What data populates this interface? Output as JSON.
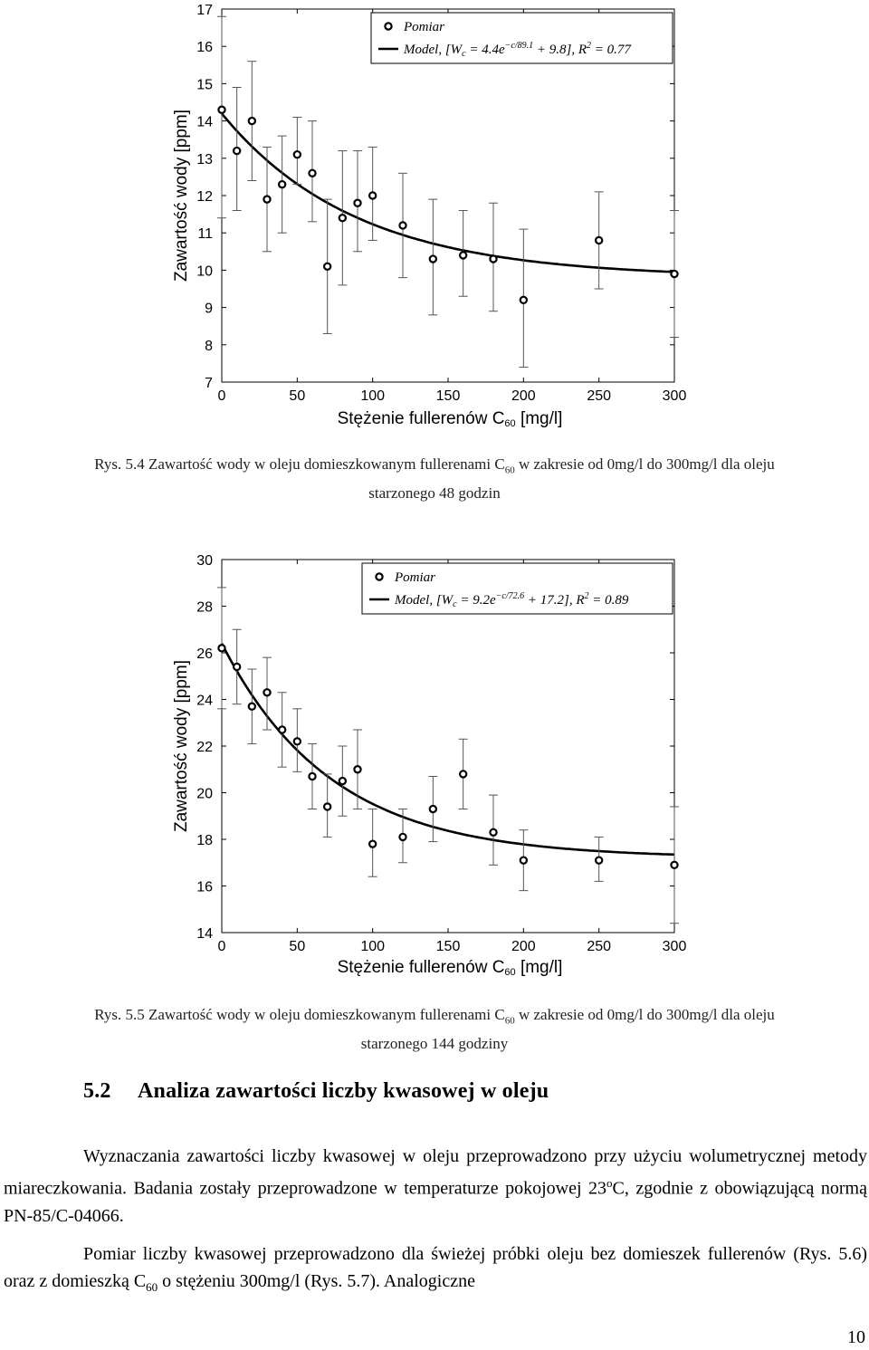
{
  "charts": [
    {
      "id": "rys-5-4",
      "chart_data": {
        "type": "scatter",
        "title": "",
        "xlabel": "Stężenie fullerenów C60 [mg/l]",
        "ylabel": "Zawartość wody [ppm]",
        "xlim": [
          0,
          300
        ],
        "ylim": [
          7,
          17
        ],
        "x_ticks": [
          0,
          50,
          100,
          150,
          200,
          250,
          300
        ],
        "y_ticks": [
          7,
          8,
          9,
          10,
          11,
          12,
          13,
          14,
          15,
          16,
          17
        ],
        "grid": false,
        "legend_position": "top-right",
        "legend": [
          "Pomiar",
          "Model, [W_c = 4.4e^{-c/89.1} + 9.8], R^2 = 0.77"
        ],
        "series": [
          {
            "name": "Pomiar",
            "x": [
              0,
              10,
              20,
              30,
              40,
              50,
              60,
              70,
              80,
              90,
              100,
              120,
              140,
              160,
              180,
              200,
              250,
              300
            ],
            "y": [
              14.3,
              13.2,
              14.0,
              11.9,
              12.3,
              13.1,
              12.6,
              10.1,
              11.4,
              11.8,
              12.0,
              11.2,
              10.3,
              10.4,
              10.3,
              9.2,
              10.8,
              9.9
            ],
            "err_low": [
              11.4,
              11.6,
              12.4,
              10.5,
              11.0,
              12.3,
              11.3,
              8.3,
              9.6,
              10.5,
              10.8,
              9.8,
              8.8,
              9.3,
              8.9,
              7.4,
              9.5,
              8.2
            ],
            "err_high": [
              16.8,
              14.9,
              15.6,
              13.3,
              13.6,
              14.1,
              14.0,
              11.9,
              13.2,
              13.2,
              13.3,
              12.6,
              11.9,
              11.6,
              11.8,
              11.1,
              12.1,
              11.6
            ]
          },
          {
            "name": "Model",
            "model": {
              "a": 4.4,
              "tau": 89.1,
              "b": 9.8
            }
          }
        ]
      },
      "legend_labels": {
        "points": "Pomiar",
        "model": "Model, [W",
        "model_sub": "c",
        "model_rest": " = 4.4e",
        "model_exp": "−c/89.1",
        "model_tail": " + 9.8], R",
        "model_sq": "2",
        "model_end": " = 0.77"
      },
      "xlabel_main": "Stężenie fullerenów C",
      "xlabel_sub": "60",
      "xlabel_unit": " [mg/l]"
    },
    {
      "id": "rys-5-5",
      "chart_data": {
        "type": "scatter",
        "title": "",
        "xlabel": "Stężenie fullerenów C60 [mg/l]",
        "ylabel": "Zawartość wody [ppm]",
        "xlim": [
          0,
          300
        ],
        "ylim": [
          14,
          30
        ],
        "x_ticks": [
          0,
          50,
          100,
          150,
          200,
          250,
          300
        ],
        "y_ticks": [
          14,
          16,
          18,
          20,
          22,
          24,
          26,
          28,
          30
        ],
        "grid": false,
        "legend_position": "top-right",
        "legend": [
          "Pomiar",
          "Model, [W_c = 9.2e^{-c/72.6} + 17.2], R^2 = 0.89"
        ],
        "series": [
          {
            "name": "Pomiar",
            "x": [
              0,
              10,
              20,
              30,
              40,
              50,
              60,
              70,
              80,
              90,
              100,
              120,
              140,
              160,
              180,
              200,
              250,
              300
            ],
            "y": [
              26.2,
              25.4,
              23.7,
              24.3,
              22.7,
              22.2,
              20.7,
              19.4,
              20.5,
              21.0,
              17.8,
              18.1,
              19.3,
              20.8,
              18.3,
              17.1,
              17.1,
              16.9
            ],
            "err_low": [
              23.6,
              23.8,
              22.1,
              22.7,
              21.1,
              20.9,
              19.3,
              18.1,
              19.0,
              19.3,
              16.4,
              17.0,
              17.9,
              19.3,
              16.9,
              15.8,
              16.2,
              14.4
            ],
            "err_high": [
              28.8,
              27.0,
              25.3,
              25.8,
              24.3,
              23.6,
              22.1,
              20.8,
              22.0,
              22.7,
              19.3,
              19.3,
              20.7,
              22.3,
              19.9,
              18.4,
              18.1,
              19.4
            ]
          },
          {
            "name": "Model",
            "model": {
              "a": 9.2,
              "tau": 72.6,
              "b": 17.2
            }
          }
        ]
      },
      "legend_labels": {
        "points": "Pomiar",
        "model": "Model, [W",
        "model_sub": "c",
        "model_rest": " = 9.2e",
        "model_exp": "−c/72.6",
        "model_tail": " + 17.2], R",
        "model_sq": "2",
        "model_end": " = 0.89"
      },
      "xlabel_main": "Stężenie fullerenów C",
      "xlabel_sub": "60",
      "xlabel_unit": " [mg/l]"
    }
  ],
  "caption1": {
    "a": "Rys. 5.4 Zawartość wody w oleju domieszkowanym fullerenami C",
    "sub": "60",
    "b": " w zakresie od 0mg/l do 300mg/l dla oleju",
    "line2": "starzonego 48 godzin"
  },
  "caption2": {
    "a": "Rys. 5.5 Zawartość wody w oleju domieszkowanym fullerenami C",
    "sub": "60",
    "b": " w zakresie od 0mg/l do 300mg/l dla oleju",
    "line2": "starzonego 144 godziny"
  },
  "section": {
    "number": "5.2",
    "title": "Analiza zawartości liczby kwasowej w oleju"
  },
  "paragraph1": {
    "a": "Wyznaczania zawartości liczby kwasowej w oleju przeprowadzono przy użyciu wolumetrycznej metody miareczkowania. Badania zostały przeprowadzone w temperaturze pokojowej 23",
    "sup": "o",
    "b": "C, zgodnie z obowiązującą normą PN-85/C-04066."
  },
  "paragraph2": {
    "a": "Pomiar liczby kwasowej przeprowadzono dla świeżej próbki oleju bez domieszek fullerenów (Rys. 5.6) oraz z domieszką C",
    "sub": "60",
    "b": " o stężeniu 300mg/l (Rys. 5.7). Analogiczne"
  },
  "page_number": "10"
}
